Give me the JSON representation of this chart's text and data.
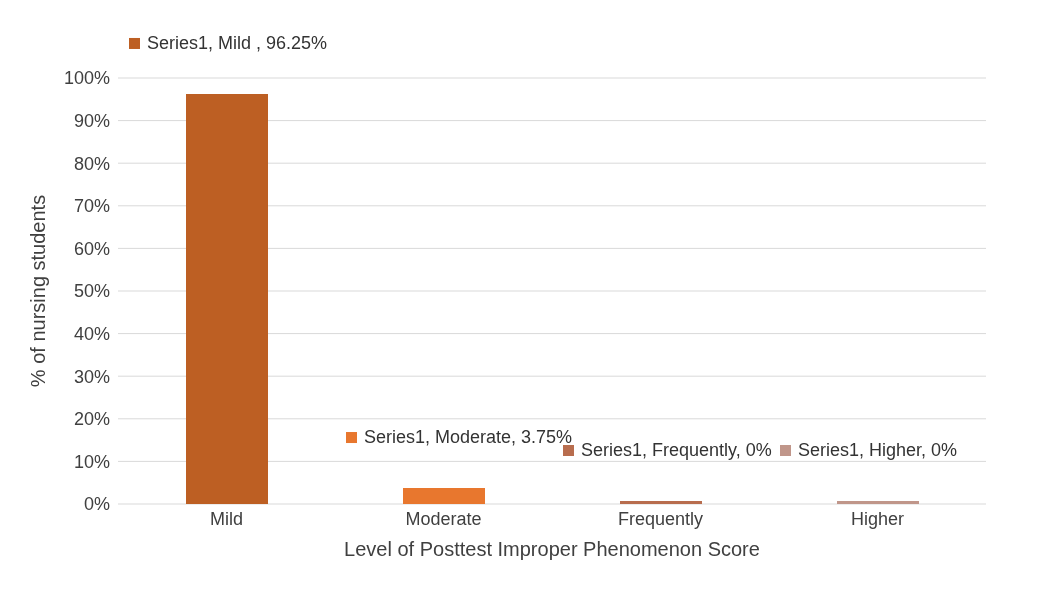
{
  "chart_data": {
    "type": "bar",
    "xlabel": "Level of Posttest Improper Phenomenon Score",
    "ylabel": "% of nursing students",
    "categories": [
      "Mild",
      "Moderate",
      "Frequently",
      "Higher"
    ],
    "values": [
      96.25,
      3.75,
      0,
      0
    ],
    "colors": [
      "#bd5f23",
      "#e8772e",
      "#b86d4e",
      "#c0968a"
    ],
    "value_labels": [
      "Series1, Mild , 96.25%",
      "Series1, Moderate, 3.75%",
      "Series1, Frequently, 0%",
      "Series1, Higher, 0%"
    ],
    "ylim": [
      0,
      100
    ],
    "yticks": [
      {
        "value": 0,
        "label": "0%"
      },
      {
        "value": 10,
        "label": "10%"
      },
      {
        "value": 20,
        "label": "20%"
      },
      {
        "value": 30,
        "label": "30%"
      },
      {
        "value": 40,
        "label": "40%"
      },
      {
        "value": 50,
        "label": "50%"
      },
      {
        "value": 60,
        "label": "60%"
      },
      {
        "value": 70,
        "label": "70%"
      },
      {
        "value": 80,
        "label": "80%"
      },
      {
        "value": 90,
        "label": "90%"
      },
      {
        "value": 100,
        "label": "100%"
      }
    ],
    "grid": "y",
    "legend": false
  }
}
